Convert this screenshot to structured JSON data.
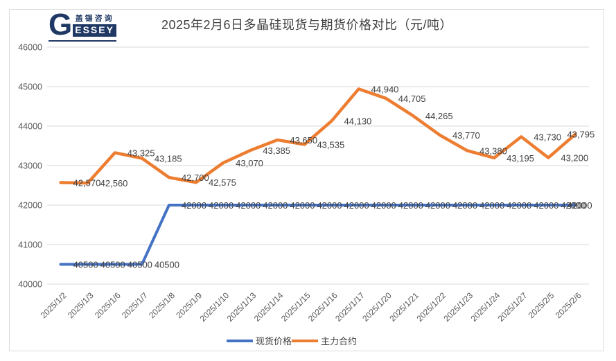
{
  "logo": {
    "g": "G",
    "brand_cn": "盖锡咨询",
    "brand_en": "ESSEY"
  },
  "chart_data": {
    "type": "line",
    "title": "2025年2月6日多晶硅现货与期货价格对比（元/吨）",
    "x": [
      "2025/1/2",
      "2025/1/3",
      "2025/1/6",
      "2025/1/7",
      "2025/1/8",
      "2025/1/9",
      "2025/1/10",
      "2025/1/13",
      "2025/1/14",
      "2025/1/15",
      "2025/1/16",
      "2025/1/17",
      "2025/1/20",
      "2025/1/21",
      "2025/1/22",
      "2025/1/23",
      "2025/1/24",
      "2025/1/27",
      "2025/2/5",
      "2025/2/6"
    ],
    "series": [
      {
        "name": "现货价格",
        "color": "#4472C4",
        "values": [
          40500,
          40500,
          40500,
          40500,
          42000,
          42000,
          42000,
          42000,
          42000,
          42000,
          42000,
          42000,
          42000,
          42000,
          42000,
          42000,
          42000,
          42000,
          42000,
          42000
        ],
        "labels": [
          "40500",
          "40500",
          "40500",
          "40500",
          "42000",
          "42000",
          "42000",
          "42000",
          "42000",
          "42000",
          "42000",
          "42000",
          "42000",
          "42000",
          "42000",
          "42000",
          "42000",
          "42000",
          "42000",
          "42000"
        ]
      },
      {
        "name": "主力合约",
        "color": "#ED7D31",
        "values": [
          42570,
          42560,
          43325,
          43185,
          42700,
          42575,
          43070,
          43385,
          43650,
          43535,
          44130,
          44940,
          44705,
          44265,
          43770,
          43380,
          43195,
          43730,
          43200,
          43795
        ],
        "labels": [
          "42,570",
          "42,560",
          "43,325",
          "43,185",
          "42,700",
          "42,575",
          "43,070",
          "43,385",
          "43,650",
          "43,535",
          "44,130",
          "44,940",
          "44,705",
          "44,265",
          "43,770",
          "43,380",
          "43,195",
          "43,730",
          "43,200",
          "43,795"
        ]
      }
    ],
    "ylim": [
      40000,
      46000
    ],
    "yticks": [
      "40000",
      "41000",
      "42000",
      "43000",
      "44000",
      "45000",
      "46000"
    ],
    "grid": "horizontal",
    "legend_position": "bottom"
  },
  "colors": {
    "brand_navy": "#1F3864",
    "spot_blue": "#4472C4",
    "futures_orange": "#ED7D31",
    "grid": "#D9D9D9",
    "axis_text": "#595959",
    "label_text": "#404040",
    "border": "#DBDBDB"
  }
}
